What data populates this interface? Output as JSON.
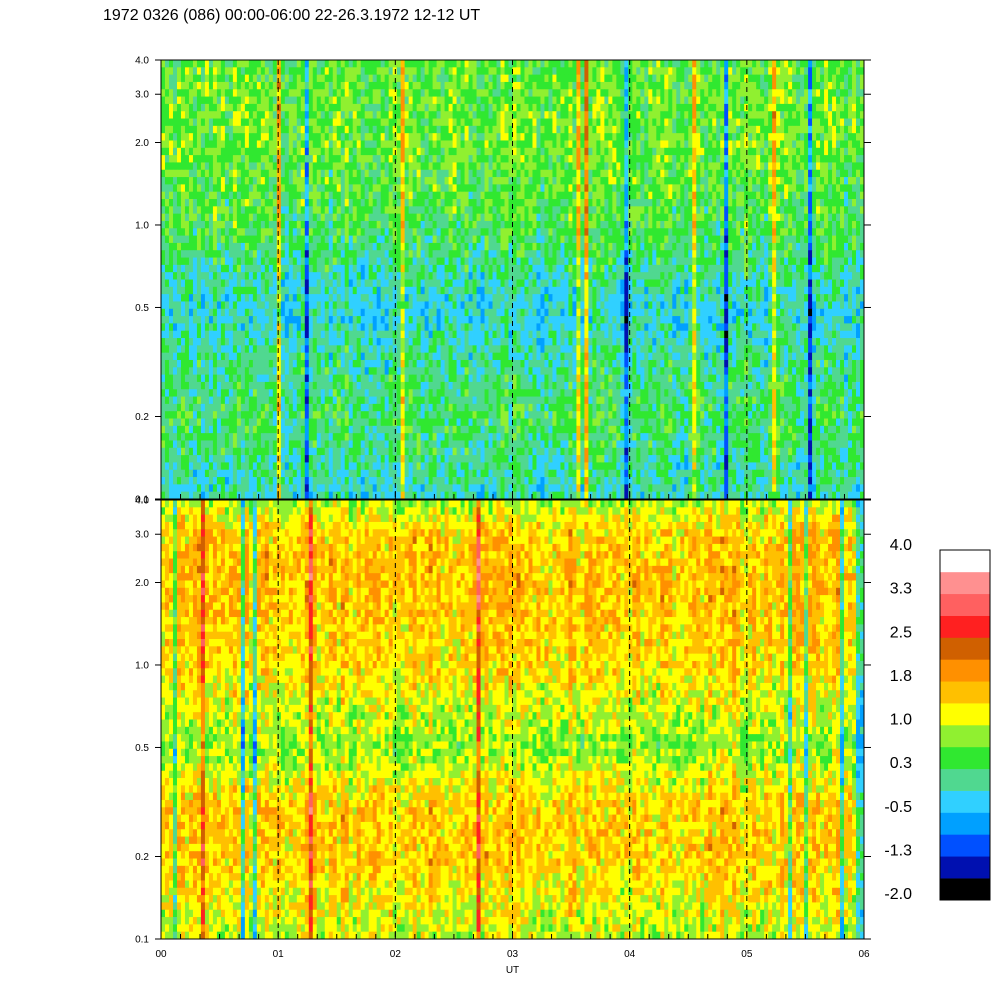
{
  "title": "1972 0326 (086) 00:00-06:00 22-26.3.1972  12-12 UT",
  "chart_data": [
    {
      "type": "heatmap",
      "panel": "upper",
      "x_ticks": [
        "00",
        "01",
        "02",
        "03",
        "04",
        "05",
        "06"
      ],
      "x_range": [
        0,
        6
      ],
      "y_ticks": [
        "4.0",
        "3.0",
        "2.0",
        "1.0",
        "0.5",
        "0.2",
        "0.1"
      ],
      "y_tick_values": [
        4.0,
        3.0,
        2.0,
        1.0,
        0.5,
        0.2,
        0.1
      ],
      "ylim": [
        0.1,
        4.0
      ],
      "y_scale": "log",
      "vertical_dashed_lines": [
        1,
        2,
        3,
        4,
        5
      ],
      "band_levels": [
        {
          "y": 4.0,
          "level": 0.5
        },
        {
          "y": 3.0,
          "level": 0.6
        },
        {
          "y": 2.0,
          "level": 0.6
        },
        {
          "y": 1.0,
          "level": 0.4
        },
        {
          "y": 0.5,
          "level": -0.2
        },
        {
          "y": 0.2,
          "level": 0.3
        },
        {
          "y": 0.1,
          "level": -0.1
        }
      ]
    },
    {
      "type": "heatmap",
      "panel": "lower",
      "x_ticks": [
        "00",
        "01",
        "02",
        "03",
        "04",
        "05",
        "06"
      ],
      "x_range": [
        0,
        6
      ],
      "xlabel": "UT",
      "y_ticks": [
        "4.0",
        "3.0",
        "2.0",
        "1.0",
        "0.5",
        "0.2",
        "0.1"
      ],
      "y_tick_values": [
        4.0,
        3.0,
        2.0,
        1.0,
        0.5,
        0.2,
        0.1
      ],
      "ylim": [
        0.1,
        4.0
      ],
      "y_scale": "log",
      "vertical_dashed_lines": [
        1,
        2,
        3,
        4,
        5
      ],
      "band_levels": [
        {
          "y": 4.0,
          "level": 0.9
        },
        {
          "y": 3.0,
          "level": 1.5
        },
        {
          "y": 2.0,
          "level": 1.6
        },
        {
          "y": 1.0,
          "level": 1.4
        },
        {
          "y": 0.5,
          "level": 0.8
        },
        {
          "y": 0.3,
          "level": 1.5
        },
        {
          "y": 0.2,
          "level": 1.5
        },
        {
          "y": 0.1,
          "level": 1.0
        }
      ]
    }
  ],
  "colorbar": {
    "labels": [
      "4.0",
      "3.3",
      "2.5",
      "1.8",
      "1.0",
      "0.3",
      "-0.5",
      "-1.3",
      "-2.0"
    ],
    "min": -2.0,
    "max": 4.0,
    "colors": [
      "#000000",
      "#0010b0",
      "#0050ff",
      "#00a0ff",
      "#30d0ff",
      "#50d890",
      "#30e830",
      "#90f030",
      "#ffff00",
      "#ffc000",
      "#ff9000",
      "#d06000",
      "#ff2020",
      "#ff6060",
      "#ff9090",
      "#ffffff"
    ]
  }
}
